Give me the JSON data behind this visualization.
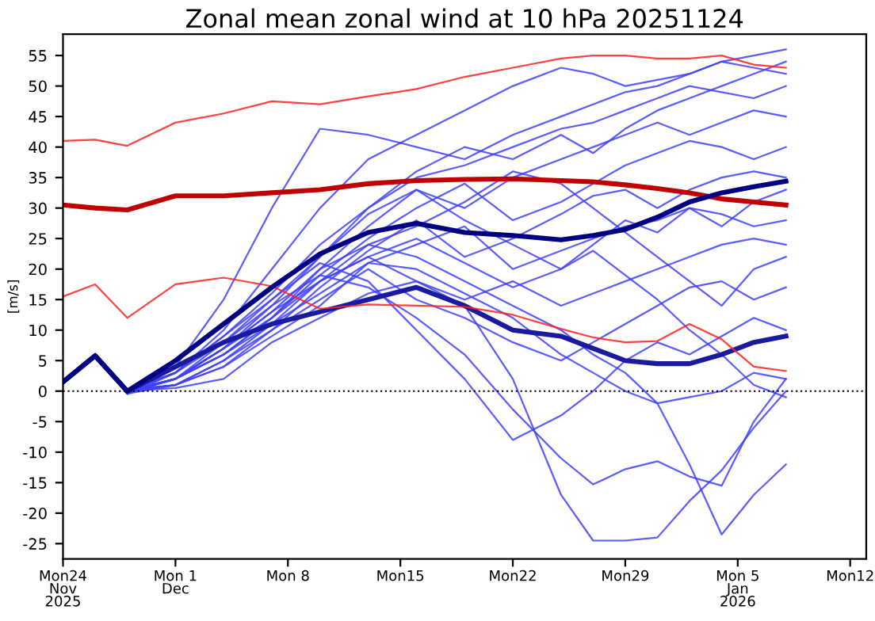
{
  "chart_data": {
    "type": "line",
    "title": "Zonal mean zonal wind at 10 hPa 20251124",
    "ylabel": "[m/s]",
    "x": [
      "2025-11-24",
      "2025-11-26",
      "2025-11-28",
      "2025-12-01",
      "2025-12-04",
      "2025-12-07",
      "2025-12-10",
      "2025-12-13",
      "2025-12-16",
      "2025-12-19",
      "2025-12-22",
      "2025-12-25",
      "2025-12-27",
      "2025-12-29",
      "2025-12-31",
      "2026-01-02",
      "2026-01-04",
      "2026-01-06",
      "2026-01-08"
    ],
    "xlim": [
      "2025-11-24",
      "2026-01-13"
    ],
    "xticks": [
      {
        "value": "2025-11-24",
        "label": "Mon24\nNov\n2025"
      },
      {
        "value": "2025-12-01",
        "label": "Mon 1\nDec"
      },
      {
        "value": "2025-12-08",
        "label": "Mon 8"
      },
      {
        "value": "2025-12-15",
        "label": "Mon15"
      },
      {
        "value": "2025-12-22",
        "label": "Mon22"
      },
      {
        "value": "2025-12-29",
        "label": "Mon29"
      },
      {
        "value": "2026-01-05",
        "label": "Mon 5\nJan\n2026"
      },
      {
        "value": "2026-01-12",
        "label": "Mon12"
      }
    ],
    "ylim": [
      -27.5,
      58.5
    ],
    "yticks": [
      -25,
      -20,
      -15,
      -10,
      -5,
      0,
      5,
      10,
      15,
      20,
      25,
      30,
      35,
      40,
      45,
      50,
      55
    ],
    "grid": false,
    "legend": false,
    "marker": "none",
    "line_style": "solid",
    "ref_lines": [
      {
        "axis": "y",
        "value": 0,
        "color": "#000000",
        "line_style": "dotted"
      }
    ],
    "series": [
      {
        "color": "#4040ff",
        "values": [
          1.5,
          5.8,
          -0.3,
          4,
          15,
          30,
          43,
          42,
          40,
          38,
          42,
          45,
          47,
          49,
          50,
          52,
          54,
          55,
          56
        ]
      },
      {
        "color": "#4040ff",
        "values": [
          1.5,
          5.8,
          0.2,
          3,
          10,
          20,
          30,
          38,
          42,
          46,
          50,
          53,
          52,
          50,
          51,
          52,
          54,
          53,
          52
        ]
      },
      {
        "color": "#4040ff",
        "values": [
          1.5,
          5.8,
          -0.5,
          3,
          8,
          15,
          22,
          30,
          35,
          37,
          40,
          43,
          44,
          46,
          48,
          50,
          49,
          48,
          50
        ]
      },
      {
        "color": "#4040ff",
        "values": [
          1.5,
          5.8,
          0,
          2,
          7,
          13,
          20,
          27,
          33,
          30,
          35,
          38,
          40,
          42,
          44,
          42,
          44,
          46,
          45
        ]
      },
      {
        "color": "#4040ff",
        "values": [
          1.5,
          5.8,
          -0.2,
          2,
          6,
          12,
          19,
          25,
          30,
          34,
          28,
          31,
          34,
          37,
          39,
          41,
          40,
          38,
          40
        ]
      },
      {
        "color": "#4040ff",
        "values": [
          1.5,
          5.8,
          0.3,
          1,
          5,
          10,
          17,
          23,
          28,
          22,
          25,
          29,
          32,
          33,
          30,
          33,
          35,
          36,
          35
        ]
      },
      {
        "color": "#4040ff",
        "values": [
          1.5,
          5.8,
          -0.4,
          1,
          4,
          9,
          14,
          21,
          24,
          27,
          20,
          23,
          25,
          27,
          28,
          30,
          29,
          27,
          28
        ]
      },
      {
        "color": "#4040ff",
        "values": [
          1.5,
          5.8,
          0,
          0.5,
          2,
          8,
          12,
          16,
          18,
          15,
          18,
          14,
          16,
          18,
          20,
          22,
          24,
          25,
          24
        ]
      },
      {
        "color": "#4040ff",
        "values": [
          1.5,
          5.8,
          -0.1,
          1,
          4,
          10,
          15,
          20,
          15,
          12,
          8,
          5,
          8,
          11,
          14,
          17,
          18,
          15,
          17
        ]
      },
      {
        "color": "#4040ff",
        "values": [
          1.5,
          5.8,
          0.1,
          2,
          6,
          11,
          16,
          21,
          20,
          16,
          12,
          6,
          3,
          0,
          -2,
          -1,
          0,
          3,
          2
        ]
      },
      {
        "color": "#4040ff",
        "values": [
          1.5,
          5.8,
          -0.2,
          2,
          7,
          13,
          18,
          22,
          18,
          14,
          2,
          -17,
          -24.5,
          -24.5,
          -24,
          -18,
          -13,
          -6,
          0
        ]
      },
      {
        "color": "#4040ff",
        "values": [
          1.5,
          5.8,
          0,
          2,
          7,
          12,
          20,
          24,
          22,
          18,
          14,
          10,
          6,
          3,
          -2,
          -12,
          -23.5,
          -17,
          -12
        ]
      },
      {
        "color": "#4040ff",
        "values": [
          1.5,
          5.8,
          -0.3,
          2,
          8,
          14,
          19,
          17,
          12,
          6,
          -3,
          -11,
          -15.3,
          -12.8,
          -11.5,
          -14,
          -15.5,
          -5,
          2
        ]
      },
      {
        "color": "#4040ff",
        "values": [
          1.5,
          5.8,
          0.2,
          3,
          9,
          15,
          21,
          18,
          10,
          2,
          -8,
          -4,
          0,
          5,
          8,
          6,
          9,
          12,
          10
        ]
      },
      {
        "color": "#4040ff",
        "values": [
          1.5,
          5.8,
          -0.1,
          3,
          9,
          16,
          24,
          30,
          36,
          40,
          38,
          42,
          39,
          43,
          46,
          48,
          50,
          52,
          54
        ]
      },
      {
        "color": "#4040ff",
        "values": [
          1.5,
          5.8,
          0,
          2,
          7,
          14,
          22,
          29,
          33,
          28,
          24,
          20,
          24,
          28,
          26,
          30,
          27,
          31,
          33
        ]
      },
      {
        "color": "#4040ff",
        "values": [
          1.5,
          5.8,
          0.1,
          1,
          5,
          11,
          18,
          24,
          27,
          31,
          36,
          34,
          30,
          26,
          22,
          18,
          14,
          20,
          22
        ]
      },
      {
        "color": "#4040ff",
        "values": [
          1.5,
          5.8,
          -0.2,
          2,
          6,
          12,
          18,
          22,
          25,
          21,
          17,
          20,
          23,
          19,
          15,
          10,
          6,
          1,
          -1
        ]
      },
      {
        "color": "#1a1a9e",
        "values": [
          1.5,
          5.8,
          0,
          4,
          8,
          11,
          13,
          15,
          17,
          14,
          10,
          9,
          7,
          5,
          4.5,
          4.5,
          6,
          8,
          9
        ]
      },
      {
        "color": "#ff2020",
        "values": [
          41,
          41.2,
          40.2,
          44,
          45.5,
          47.5,
          47,
          48.3,
          49.5,
          51.5,
          53,
          54.5,
          55,
          55,
          54.5,
          54.5,
          55,
          53.5,
          53
        ]
      },
      {
        "color": "#ff2020",
        "values": [
          15.5,
          17.5,
          12,
          17.5,
          18.6,
          17.2,
          13.5,
          14.2,
          14,
          13.8,
          12.5,
          10.2,
          8.8,
          8,
          8.2,
          11,
          8.5,
          4,
          3.3
        ]
      },
      {
        "color": "#c00000",
        "values": [
          30.5,
          30,
          29.7,
          32,
          32,
          32.5,
          33,
          34,
          34.5,
          34.7,
          34.8,
          34.5,
          34.3,
          33.8,
          33.2,
          32.5,
          31.5,
          31,
          30.5
        ]
      },
      {
        "color": "#000080",
        "values": [
          1.5,
          5.8,
          0,
          5,
          11,
          17,
          22.5,
          26,
          27.5,
          26,
          25.5,
          24.8,
          25.5,
          26.5,
          28.5,
          31,
          32.5,
          33.5,
          34.4
        ]
      }
    ]
  }
}
